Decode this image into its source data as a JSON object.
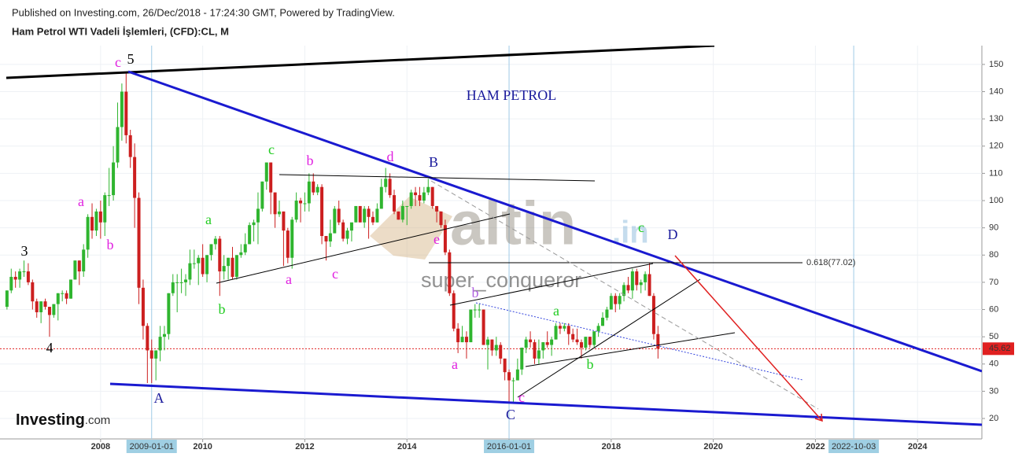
{
  "header": {
    "published": "Published on Investing.com, 26/Dec/2018 - 17:24:30 GMT, Powered by TradingView."
  },
  "logo": {
    "brand": "Investing",
    "suffix": ".com"
  },
  "watermark": {
    "site": "altin",
    "site_suffix": ".in",
    "author": "super_conqueror"
  },
  "chart_data": {
    "type": "candlestick",
    "title": "Ham Petrol WTI Vadeli İşlemleri, (CFD):CL, M",
    "up_color": "#2fb52f",
    "down_color": "#cc1f1f",
    "x": [
      "2006-03",
      "2006-04",
      "2006-05",
      "2006-06",
      "2006-07",
      "2006-08",
      "2006-09",
      "2006-10",
      "2006-11",
      "2006-12",
      "2007-01",
      "2007-02",
      "2007-03",
      "2007-04",
      "2007-05",
      "2007-06",
      "2007-07",
      "2007-08",
      "2007-09",
      "2007-10",
      "2007-11",
      "2007-12",
      "2008-01",
      "2008-02",
      "2008-03",
      "2008-04",
      "2008-05",
      "2008-06",
      "2008-07",
      "2008-08",
      "2008-09",
      "2008-10",
      "2008-11",
      "2008-12",
      "2009-01",
      "2009-02",
      "2009-03",
      "2009-04",
      "2009-05",
      "2009-06",
      "2009-07",
      "2009-08",
      "2009-09",
      "2009-10",
      "2009-11",
      "2009-12",
      "2010-01",
      "2010-02",
      "2010-03",
      "2010-04",
      "2010-05",
      "2010-06",
      "2010-07",
      "2010-08",
      "2010-09",
      "2010-10",
      "2010-11",
      "2010-12",
      "2011-01",
      "2011-02",
      "2011-03",
      "2011-04",
      "2011-05",
      "2011-06",
      "2011-07",
      "2011-08",
      "2011-09",
      "2011-10",
      "2011-11",
      "2011-12",
      "2012-01",
      "2012-02",
      "2012-03",
      "2012-04",
      "2012-05",
      "2012-06",
      "2012-07",
      "2012-08",
      "2012-09",
      "2012-10",
      "2012-11",
      "2012-12",
      "2013-01",
      "2013-02",
      "2013-03",
      "2013-04",
      "2013-05",
      "2013-06",
      "2013-07",
      "2013-08",
      "2013-09",
      "2013-10",
      "2013-11",
      "2013-12",
      "2014-01",
      "2014-02",
      "2014-03",
      "2014-04",
      "2014-05",
      "2014-06",
      "2014-07",
      "2014-08",
      "2014-09",
      "2014-10",
      "2014-11",
      "2014-12",
      "2015-01",
      "2015-02",
      "2015-03",
      "2015-04",
      "2015-05",
      "2015-06",
      "2015-07",
      "2015-08",
      "2015-09",
      "2015-10",
      "2015-11",
      "2015-12",
      "2016-01",
      "2016-02",
      "2016-03",
      "2016-04",
      "2016-05",
      "2016-06",
      "2016-07",
      "2016-08",
      "2016-09",
      "2016-10",
      "2016-11",
      "2016-12",
      "2017-01",
      "2017-02",
      "2017-03",
      "2017-04",
      "2017-05",
      "2017-06",
      "2017-07",
      "2017-08",
      "2017-09",
      "2017-10",
      "2017-11",
      "2017-12",
      "2018-01",
      "2018-02",
      "2018-03",
      "2018-04",
      "2018-05",
      "2018-06",
      "2018-07",
      "2018-08",
      "2018-09",
      "2018-10",
      "2018-11",
      "2018-12"
    ],
    "ohlc": [
      [
        61,
        67,
        60,
        67
      ],
      [
        67,
        75,
        66,
        72
      ],
      [
        72,
        74,
        68,
        71
      ],
      [
        71,
        75,
        68,
        74
      ],
      [
        74,
        78,
        72,
        74
      ],
      [
        74,
        77,
        69,
        70
      ],
      [
        70,
        71,
        60,
        63
      ],
      [
        63,
        64,
        57,
        59
      ],
      [
        59,
        63,
        55,
        63
      ],
      [
        63,
        64,
        60,
        61
      ],
      [
        61,
        61,
        50,
        58
      ],
      [
        58,
        62,
        57,
        62
      ],
      [
        62,
        66,
        56,
        66
      ],
      [
        66,
        67,
        63,
        66
      ],
      [
        66,
        67,
        62,
        64
      ],
      [
        64,
        71,
        64,
        71
      ],
      [
        71,
        78,
        71,
        78
      ],
      [
        78,
        78,
        69,
        74
      ],
      [
        74,
        84,
        72,
        82
      ],
      [
        82,
        95,
        79,
        94
      ],
      [
        94,
        99,
        86,
        89
      ],
      [
        89,
        97,
        87,
        96
      ],
      [
        96,
        100,
        86,
        92
      ],
      [
        92,
        103,
        87,
        102
      ],
      [
        102,
        112,
        98,
        102
      ],
      [
        102,
        120,
        100,
        114
      ],
      [
        114,
        136,
        112,
        127
      ],
      [
        127,
        143,
        122,
        140
      ],
      [
        140,
        147,
        121,
        124
      ],
      [
        124,
        126,
        112,
        116
      ],
      [
        116,
        121,
        90,
        101
      ],
      [
        101,
        103,
        62,
        68
      ],
      [
        68,
        71,
        49,
        54
      ],
      [
        54,
        55,
        33,
        45
      ],
      [
        45,
        49,
        33,
        42
      ],
      [
        42,
        45,
        34,
        45
      ],
      [
        45,
        54,
        41,
        50
      ],
      [
        50,
        54,
        45,
        51
      ],
      [
        51,
        66,
        49,
        66
      ],
      [
        66,
        73,
        65,
        70
      ],
      [
        70,
        73,
        59,
        70
      ],
      [
        70,
        75,
        66,
        70
      ],
      [
        70,
        73,
        65,
        71
      ],
      [
        71,
        82,
        69,
        77
      ],
      [
        77,
        82,
        75,
        77
      ],
      [
        77,
        80,
        69,
        79
      ],
      [
        79,
        84,
        72,
        73
      ],
      [
        73,
        80,
        70,
        80
      ],
      [
        80,
        84,
        78,
        84
      ],
      [
        84,
        87,
        82,
        86
      ],
      [
        86,
        87,
        65,
        74
      ],
      [
        74,
        80,
        71,
        76
      ],
      [
        76,
        79,
        71,
        79
      ],
      [
        79,
        83,
        71,
        72
      ],
      [
        72,
        80,
        71,
        80
      ],
      [
        80,
        84,
        79,
        81
      ],
      [
        81,
        88,
        80,
        84
      ],
      [
        84,
        92,
        84,
        91
      ],
      [
        91,
        93,
        85,
        92
      ],
      [
        92,
        103,
        84,
        97
      ],
      [
        97,
        107,
        96,
        107
      ],
      [
        107,
        114,
        104,
        114
      ],
      [
        114,
        114,
        95,
        103
      ],
      [
        103,
        103,
        90,
        95
      ],
      [
        95,
        100,
        94,
        96
      ],
      [
        96,
        96,
        76,
        89
      ],
      [
        89,
        90,
        77,
        79
      ],
      [
        79,
        94,
        75,
        93
      ],
      [
        93,
        103,
        92,
        100
      ],
      [
        100,
        101,
        92,
        99
      ],
      [
        99,
        103,
        96,
        99
      ],
      [
        99,
        110,
        96,
        107
      ],
      [
        107,
        110,
        102,
        103
      ],
      [
        103,
        106,
        102,
        105
      ],
      [
        105,
        106,
        84,
        87
      ],
      [
        87,
        87,
        78,
        85
      ],
      [
        85,
        93,
        83,
        88
      ],
      [
        88,
        98,
        88,
        97
      ],
      [
        97,
        100,
        91,
        92
      ],
      [
        92,
        93,
        85,
        86
      ],
      [
        86,
        90,
        84,
        89
      ],
      [
        89,
        91,
        85,
        92
      ],
      [
        92,
        98,
        92,
        98
      ],
      [
        98,
        98,
        92,
        92
      ],
      [
        92,
        98,
        90,
        97
      ],
      [
        97,
        98,
        86,
        94
      ],
      [
        94,
        96,
        91,
        92
      ],
      [
        92,
        99,
        92,
        97
      ],
      [
        97,
        108,
        97,
        105
      ],
      [
        105,
        112,
        103,
        108
      ],
      [
        108,
        110,
        101,
        102
      ],
      [
        102,
        104,
        95,
        96
      ],
      [
        96,
        96,
        93,
        93
      ],
      [
        93,
        100,
        92,
        98
      ],
      [
        98,
        98,
        91,
        98
      ],
      [
        98,
        104,
        97,
        103
      ],
      [
        103,
        105,
        98,
        102
      ],
      [
        102,
        105,
        98,
        100
      ],
      [
        100,
        105,
        99,
        103
      ],
      [
        103,
        108,
        102,
        105
      ],
      [
        105,
        105,
        97,
        98
      ],
      [
        98,
        98,
        92,
        96
      ],
      [
        96,
        96,
        90,
        91
      ],
      [
        91,
        93,
        80,
        81
      ],
      [
        81,
        82,
        65,
        66
      ],
      [
        66,
        67,
        52,
        53
      ],
      [
        53,
        55,
        44,
        48
      ],
      [
        48,
        54,
        48,
        50
      ],
      [
        50,
        52,
        42,
        48
      ],
      [
        48,
        60,
        48,
        60
      ],
      [
        60,
        62,
        57,
        60
      ],
      [
        60,
        62,
        57,
        60
      ],
      [
        60,
        60,
        47,
        47
      ],
      [
        47,
        50,
        38,
        49
      ],
      [
        49,
        49,
        43,
        45
      ],
      [
        45,
        50,
        43,
        47
      ],
      [
        47,
        48,
        40,
        42
      ],
      [
        42,
        42,
        34,
        37
      ],
      [
        37,
        38,
        26,
        34
      ],
      [
        34,
        35,
        26,
        34
      ],
      [
        34,
        42,
        34,
        38
      ],
      [
        38,
        46,
        36,
        46
      ],
      [
        46,
        50,
        44,
        49
      ],
      [
        49,
        52,
        46,
        48
      ],
      [
        48,
        49,
        40,
        42
      ],
      [
        42,
        49,
        40,
        45
      ],
      [
        45,
        48,
        42,
        48
      ],
      [
        48,
        52,
        46,
        47
      ],
      [
        47,
        50,
        43,
        49
      ],
      [
        49,
        55,
        49,
        54
      ],
      [
        54,
        55,
        51,
        53
      ],
      [
        53,
        55,
        52,
        54
      ],
      [
        54,
        55,
        47,
        51
      ],
      [
        51,
        53,
        48,
        49
      ],
      [
        49,
        53,
        47,
        48
      ],
      [
        48,
        49,
        42,
        46
      ],
      [
        46,
        50,
        45,
        50
      ],
      [
        50,
        50,
        46,
        47
      ],
      [
        47,
        52,
        46,
        52
      ],
      [
        52,
        55,
        50,
        54
      ],
      [
        54,
        59,
        54,
        57
      ],
      [
        57,
        61,
        56,
        60
      ],
      [
        60,
        66,
        60,
        65
      ],
      [
        65,
        66,
        59,
        62
      ],
      [
        62,
        66,
        60,
        65
      ],
      [
        65,
        70,
        63,
        69
      ],
      [
        69,
        72,
        66,
        67
      ],
      [
        67,
        75,
        64,
        74
      ],
      [
        74,
        75,
        67,
        69
      ],
      [
        69,
        71,
        66,
        70
      ],
      [
        70,
        74,
        67,
        73
      ],
      [
        73,
        77,
        65,
        65
      ],
      [
        65,
        66,
        49,
        51
      ],
      [
        51,
        54,
        42,
        45.62
      ]
    ],
    "xlim": [
      2006.03,
      2025.26
    ],
    "ylim": [
      12.5,
      156.9
    ],
    "xticks": [
      2008,
      2010,
      2012,
      2014,
      2016,
      2018,
      2020,
      2022,
      2024
    ],
    "yticks": [
      20,
      30,
      40,
      50,
      60,
      70,
      80,
      90,
      100,
      110,
      120,
      130,
      140,
      150
    ],
    "grid": true,
    "vlines": [
      {
        "value": 2009.0,
        "label": "2009-01-01"
      },
      {
        "value": 2016.0,
        "label": "2016-01-01"
      },
      {
        "value": 2022.75,
        "label": "2022-10-03"
      }
    ],
    "last_price": 45.62,
    "annotations": [
      {
        "text": "c",
        "color": "#e020e0"
      },
      {
        "text": "5",
        "color": "#000000"
      },
      {
        "text": "3",
        "color": "#000000"
      },
      {
        "text": "4",
        "color": "#000000"
      },
      {
        "text": "a",
        "color": "#e020e0"
      },
      {
        "text": "b",
        "color": "#e020e0"
      },
      {
        "text": "A",
        "color": "#1a1a9c"
      },
      {
        "text": "a",
        "color": "#22cc22"
      },
      {
        "text": "b",
        "color": "#22cc22"
      },
      {
        "text": "c",
        "color": "#22cc22"
      },
      {
        "text": "b",
        "color": "#e020e0"
      },
      {
        "text": "a",
        "color": "#e020e0"
      },
      {
        "text": "c",
        "color": "#e020e0"
      },
      {
        "text": "d",
        "color": "#e020e0"
      },
      {
        "text": "B",
        "color": "#1a1a9c"
      },
      {
        "text": "e",
        "color": "#e020e0"
      },
      {
        "text": "HAM PETROL",
        "color": "#1a1a9c"
      },
      {
        "text": "b",
        "color": "#b060e0"
      },
      {
        "text": "a",
        "color": "#e020e0"
      },
      {
        "text": "C",
        "color": "#1a1a9c"
      },
      {
        "text": "c",
        "color": "#e020e0"
      },
      {
        "text": "a",
        "color": "#22cc22"
      },
      {
        "text": "b",
        "color": "#22cc22"
      },
      {
        "text": "c",
        "color": "#22cc22"
      },
      {
        "text": "D",
        "color": "#1a1a9c"
      },
      {
        "text": "0.618(77.02)",
        "color": "#000000"
      }
    ]
  }
}
